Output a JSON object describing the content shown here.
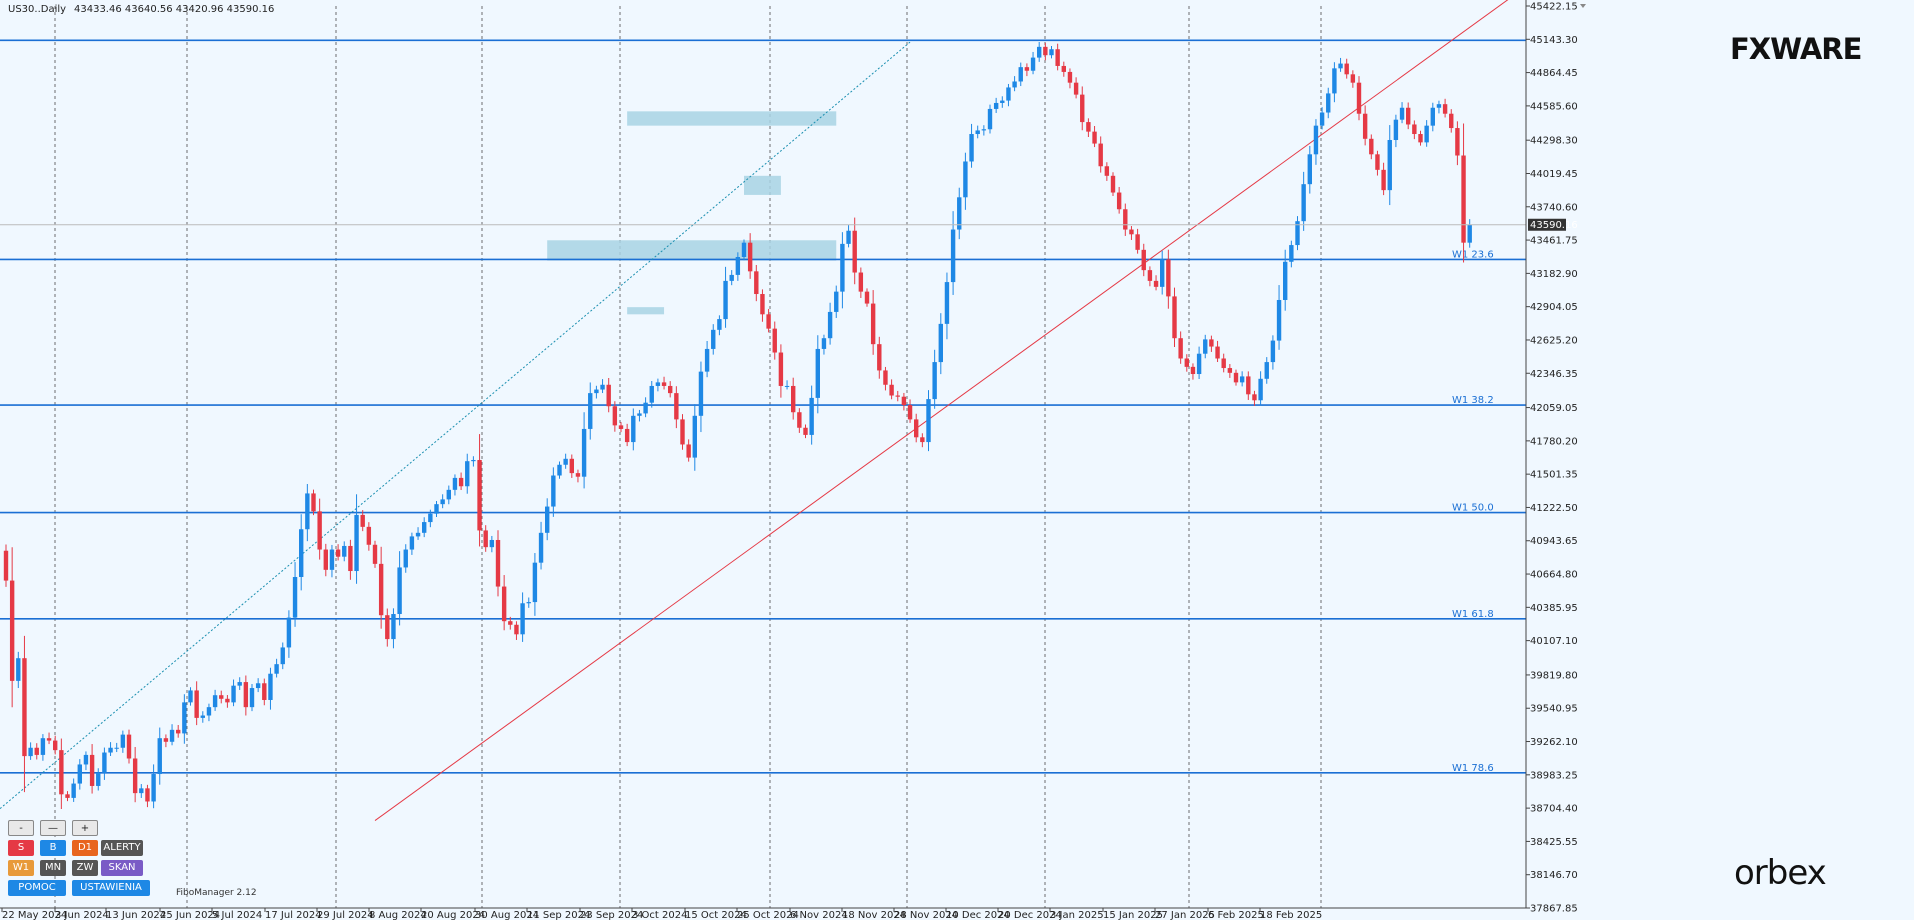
{
  "header": {
    "symbol": "US30..Daily",
    "ohlc": "43433.46 43640.56 43420.96 43590.16"
  },
  "brand": {
    "fx_logo": "FXWARE",
    "orbex_logo": "orbex",
    "fibo_manager": "FiboManager 2.12"
  },
  "colors": {
    "bull": "#1e88e5",
    "bear": "#e53945",
    "background": "#f0f8ff",
    "fib_line": "#1a6fd4",
    "zone": "#a8d4e4",
    "trend": "#e53945"
  },
  "panel": {
    "row1": [
      {
        "label": "-"
      },
      {
        "label": "—"
      },
      {
        "label": "+"
      }
    ],
    "row2": [
      {
        "label": "S",
        "color": "#e53945"
      },
      {
        "label": "B",
        "color": "#1e88e5"
      },
      {
        "label": "D1",
        "color": "#e8651f"
      },
      {
        "label": "ALERTY",
        "color": "#555555"
      }
    ],
    "row3": [
      {
        "label": "W1",
        "color": "#e89a3a"
      },
      {
        "label": "MN",
        "color": "#555555"
      },
      {
        "label": "ZW",
        "color": "#555555"
      },
      {
        "label": "SKAN",
        "color": "#7a5bc6"
      }
    ],
    "row4": [
      {
        "label": "POMOC",
        "color": "#1e88e5"
      },
      {
        "label": "USTAWIENIA",
        "color": "#1e88e5"
      }
    ]
  },
  "chart_data": {
    "type": "candlestick",
    "ylim": [
      37867.89,
      45422.15
    ],
    "price_axis_labels": [
      "45422.15",
      "45143.30",
      "44864.45",
      "44585.60",
      "44298.30",
      "44019.45",
      "43740.60",
      "43461.75",
      "43182.90",
      "42904.05",
      "42625.20",
      "42346.35",
      "42059.05",
      "41780.20",
      "41501.35",
      "41222.50",
      "40943.65",
      "40664.80",
      "40385.95",
      "40107.10",
      "39819.80",
      "39540.95",
      "39262.10",
      "38983.25",
      "38704.40",
      "38425.55",
      "38146.70",
      "37867.85"
    ],
    "current_price": "43590.16",
    "time_labels": [
      "22 May 2024",
      "3 Jun 2024",
      "13 Jun 2024",
      "25 Jun 2024",
      "5 Jul 2024",
      "17 Jul 2024",
      "29 Jul 2024",
      "8 Aug 2024",
      "20 Aug 2024",
      "30 Aug 2024",
      "11 Sep 2024",
      "23 Sep 2024",
      "3 Oct 2024",
      "15 Oct 2024",
      "25 Oct 2024",
      "6 Nov 2024",
      "18 Nov 2024",
      "28 Nov 2024",
      "10 Dec 2024",
      "20 Dec 2024",
      "3 Jan 2025",
      "15 Jan 2025",
      "27 Jan 2025",
      "6 Feb 2025",
      "18 Feb 2025"
    ],
    "fib_levels": [
      {
        "label": "",
        "price": 45135
      },
      {
        "label": "W1 23.6",
        "price": 43300
      },
      {
        "label": "W1 38.2",
        "price": 42080
      },
      {
        "label": "W1 50.0",
        "price": 41180
      },
      {
        "label": "W1 61.8",
        "price": 40290
      },
      {
        "label": "W1 78.6",
        "price": 39000
      }
    ],
    "zones": [
      {
        "x1": 88,
        "x2": 135,
        "p1": 43460,
        "p2": 43290
      },
      {
        "x1": 101,
        "x2": 135,
        "p1": 44540,
        "p2": 44420
      },
      {
        "x1": 120,
        "x2": 126,
        "p1": 44000,
        "p2": 43840
      },
      {
        "x1": 101,
        "x2": 107,
        "p1": 42900,
        "p2": 42840
      }
    ],
    "closes": [
      40610,
      39770,
      39960,
      39140,
      39210,
      39150,
      39290,
      39270,
      39190,
      38820,
      38790,
      38910,
      39070,
      39150,
      38890,
      39000,
      39170,
      39210,
      39210,
      39320,
      39120,
      38830,
      38870,
      38760,
      38990,
      39290,
      39260,
      39360,
      39330,
      39590,
      39690,
      39460,
      39480,
      39550,
      39650,
      39620,
      39590,
      39730,
      39760,
      39550,
      39710,
      39750,
      39610,
      39830,
      39910,
      40050,
      40300,
      40640,
      41040,
      41340,
      41190,
      40870,
      40700,
      40870,
      40810,
      40900,
      40690,
      41160,
      41060,
      40910,
      40750,
      40320,
      40120,
      40330,
      40720,
      40870,
      40980,
      41010,
      41100,
      41170,
      41250,
      41290,
      41370,
      41470,
      41400,
      41610,
      41620,
      41030,
      40890,
      40950,
      40560,
      40270,
      40240,
      40160,
      40420,
      40430,
      40760,
      41010,
      41230,
      41490,
      41580,
      41630,
      41510,
      41480,
      41880,
      42180,
      42210,
      42250,
      42070,
      41910,
      41880,
      41770,
      41990,
      42010,
      42100,
      42240,
      42270,
      42240,
      42180,
      41960,
      41750,
      41640,
      41990,
      42360,
      42550,
      42710,
      42800,
      43120,
      43170,
      43320,
      43440,
      43200,
      43010,
      42840,
      42720,
      42520,
      42240,
      42240,
      42020,
      41890,
      41830,
      42140,
      42550,
      42640,
      42860,
      43030,
      43430,
      43540,
      43190,
      43030,
      42930,
      42590,
      42370,
      42250,
      42160,
      42150,
      42080,
      41960,
      41810,
      41770,
      42130,
      42440,
      42760,
      43110,
      43550,
      43820,
      44120,
      44350,
      44380,
      44390,
      44560,
      44610,
      44630,
      44740,
      44790,
      44910,
      44880,
      44990,
      45080,
      45010,
      45060,
      44920,
      44870,
      44780,
      44680,
      44450,
      44370,
      44270,
      44080,
      44000,
      43860,
      43720,
      43550,
      43510,
      43380,
      43210,
      43120,
      43070,
      43300,
      42990,
      42640,
      42470,
      42400,
      42340,
      42510,
      42630,
      42570,
      42470,
      42390,
      42350,
      42270,
      42320,
      42170,
      42120,
      42300,
      42440,
      42620,
      42960,
      43280,
      43420,
      43620,
      43930,
      44180,
      44420,
      44530,
      44690,
      44900,
      44940,
      44850,
      44780,
      44520,
      44310,
      44180,
      44050,
      43880,
      44300,
      44470,
      44570,
      44430,
      44350,
      44280,
      44420,
      44570,
      44600,
      44520,
      44400,
      44170,
      43440,
      43590
    ]
  }
}
